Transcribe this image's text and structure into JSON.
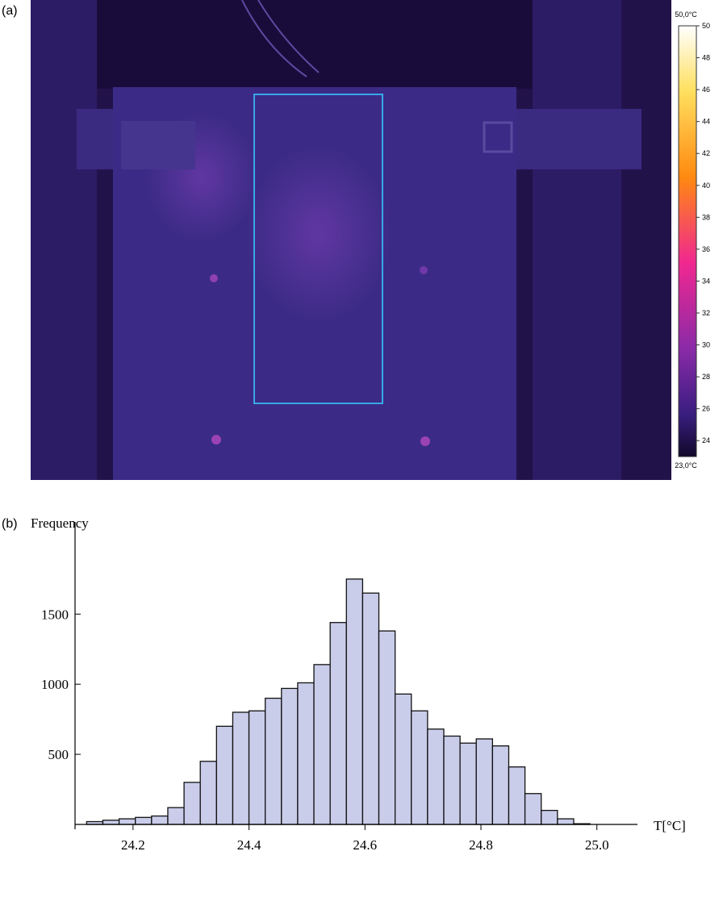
{
  "panel_labels": [
    "(a)",
    "(b)"
  ],
  "thermal_image": {
    "colorbar": {
      "max_label": "50,0°C",
      "min_label": "23,0°C",
      "range": [
        23,
        50
      ],
      "ticks": [
        24,
        26,
        28,
        30,
        32,
        34,
        36,
        38,
        40,
        42,
        44,
        46,
        48,
        50
      ]
    }
  },
  "chart_data": {
    "type": "histogram",
    "ylabel": "Frequency",
    "xlabel": "T[°C]",
    "bins": [
      24.12,
      24.148,
      24.176,
      24.204,
      24.232,
      24.26,
      24.288,
      24.316,
      24.344,
      24.372,
      24.4,
      24.428,
      24.456,
      24.484,
      24.512,
      24.54,
      24.568,
      24.596,
      24.624,
      24.652,
      24.68,
      24.708,
      24.736,
      24.764,
      24.792,
      24.82,
      24.848,
      24.876,
      24.904,
      24.932,
      24.96,
      24.988
    ],
    "values": [
      20,
      30,
      40,
      50,
      60,
      120,
      300,
      450,
      700,
      800,
      810,
      900,
      970,
      1010,
      1140,
      1440,
      1750,
      1650,
      1380,
      930,
      810,
      680,
      630,
      580,
      610,
      560,
      410,
      220,
      100,
      40,
      5
    ],
    "color": "#c9cdea",
    "xlim": [
      24.1,
      25.07
    ],
    "ylim": [
      0,
      2100
    ],
    "xticks": [
      24.2,
      24.4,
      24.6,
      24.8,
      {
        "value": 25,
        "label": "25.0"
      }
    ],
    "yticks": [
      500,
      1000,
      1500
    ]
  }
}
